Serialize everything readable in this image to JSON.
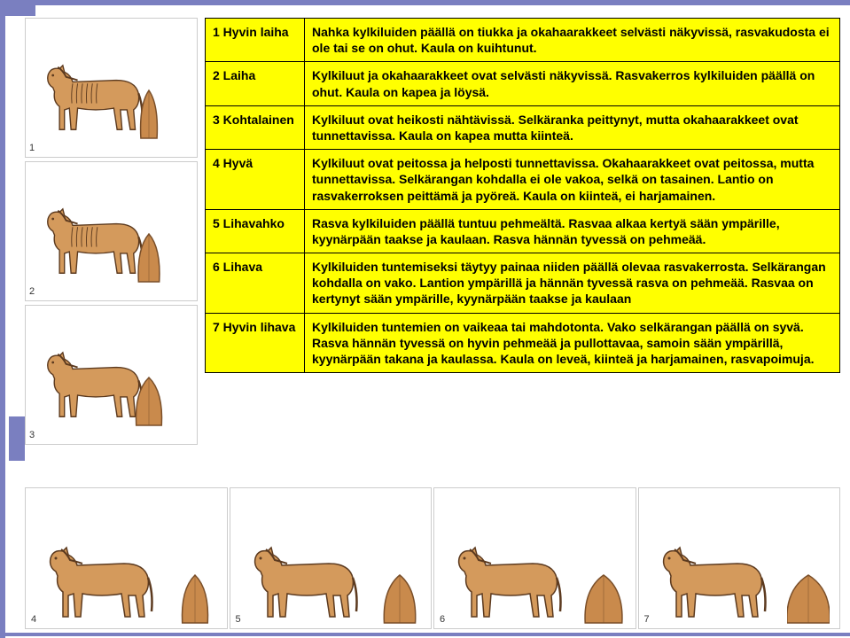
{
  "colors": {
    "accent": "#7a7fc0",
    "table_bg": "#ffff00",
    "table_border": "#000000",
    "horse_body": "#d49a5c",
    "horse_stroke": "#5c3a1f",
    "rump_fill": "#c98a4c",
    "rump_stroke": "#7a4f2a",
    "cell_border": "#cccccc",
    "text": "#000000"
  },
  "rows": [
    {
      "score": "1 Hyvin laiha",
      "desc": "Nahka kylkiluiden päällä on tiukka ja okahaarakkeet selvästi näkyvissä, rasvakudosta ei ole tai se on ohut. Kaula on kuihtunut."
    },
    {
      "score": "2 Laiha",
      "desc": "Kylkiluut ja okahaarakkeet ovat selvästi näkyvissä. Rasvakerros kylkiluiden päällä on ohut. Kaula on kapea ja löysä."
    },
    {
      "score": "3 Kohtalainen",
      "desc": "Kylkiluut ovat heikosti nähtävissä. Selkäranka peittynyt, mutta okahaarakkeet ovat tunnettavissa. Kaula on kapea mutta kiinteä."
    },
    {
      "score": "4 Hyvä",
      "desc": "Kylkiluut ovat peitossa ja helposti tunnettavissa. Okahaarakkeet ovat peitossa, mutta tunnettavissa. Selkärangan kohdalla ei ole vakoa, selkä on tasainen. Lantio on rasvakerroksen peittämä ja pyöreä. Kaula on kiinteä, ei harjamainen."
    },
    {
      "score": "5 Lihavahko",
      "desc": "Rasva kylkiluiden päällä tuntuu pehmeältä. Rasvaa alkaa kertyä sään ympärille, kyynärpään taakse ja kaulaan. Rasva hännän tyvessä on pehmeää."
    },
    {
      "score": "6 Lihava",
      "desc": "Kylkiluiden tuntemiseksi täytyy painaa niiden päällä olevaa rasvakerrosta. Selkärangan kohdalla on vako. Lantion ympärillä ja hännän tyvessä rasva on pehmeää. Rasvaa on kertynyt sään ympärille, kyynärpään taakse ja kaulaan"
    },
    {
      "score": "7 Hyvin lihava",
      "desc": "Kylkiluiden tuntemien on vaikeaa tai mahdotonta. Vako selkärangan päällä on syvä. Rasva hännän tyvessä on hyvin pehmeää ja pullottavaa, samoin sään ympärillä, kyynärpään takana ja kaulassa. Kaula on leveä, kiinteä ja harjamainen, rasvapoimuja."
    }
  ],
  "side_figures": [
    "1",
    "2",
    "3"
  ],
  "bottom_figures": [
    "4",
    "5",
    "6",
    "7"
  ]
}
